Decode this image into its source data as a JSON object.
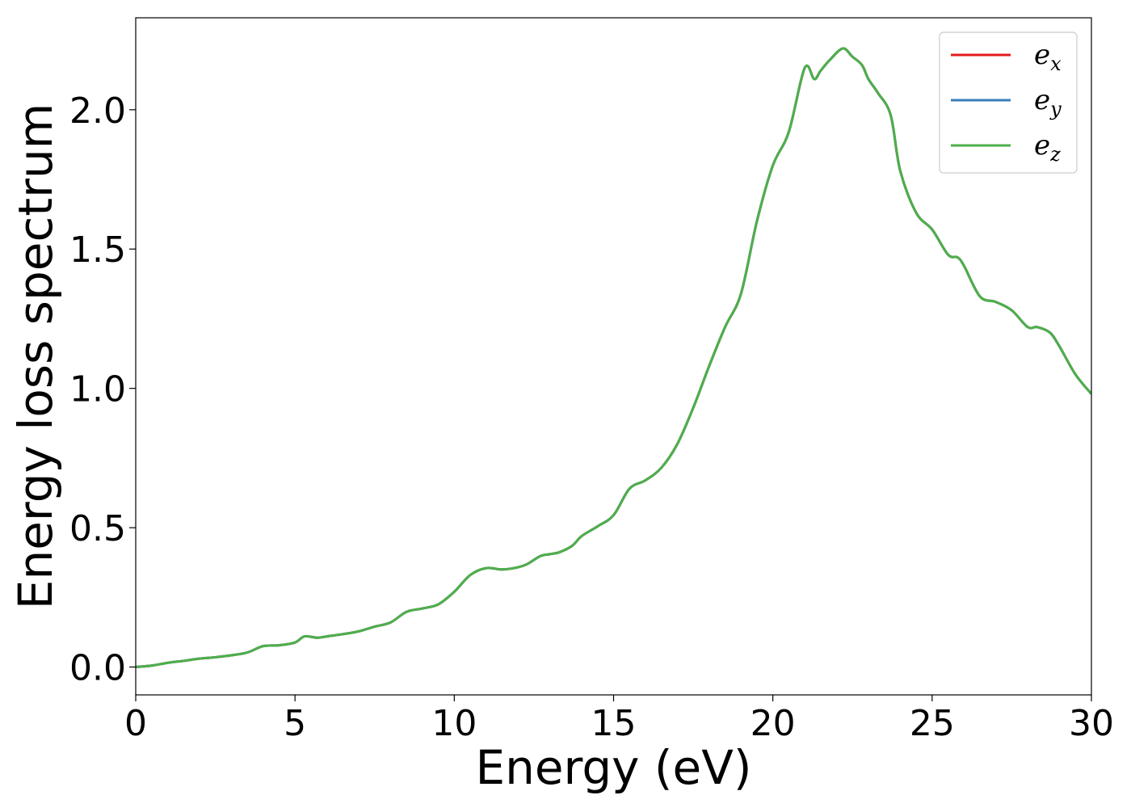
{
  "chart_data": {
    "type": "line",
    "title": "",
    "xlabel": "Energy (eV)",
    "ylabel": "Energy loss spectrum",
    "xlim": [
      0,
      30
    ],
    "ylim": [
      -0.1,
      2.33
    ],
    "x_ticks": [
      "0",
      "5",
      "10",
      "15",
      "20",
      "25",
      "30"
    ],
    "y_ticks": [
      "0.0",
      "0.5",
      "1.0",
      "1.5",
      "2.0"
    ],
    "grid": false,
    "legend_position": "top-right",
    "x": [
      0,
      0.5,
      1,
      1.5,
      2,
      2.5,
      3,
      3.5,
      4,
      4.5,
      5,
      5.3,
      5.7,
      6,
      6.5,
      7,
      7.5,
      8,
      8.5,
      9,
      9.5,
      10,
      10.5,
      11,
      11.5,
      12,
      12.3,
      12.7,
      13,
      13.3,
      13.7,
      14,
      14.5,
      15,
      15.5,
      16,
      16.5,
      17,
      17.5,
      18,
      18.5,
      19,
      19.5,
      20,
      20.5,
      21,
      21.3,
      21.5,
      21.8,
      22.2,
      22.5,
      22.8,
      23,
      23.3,
      23.7,
      24,
      24.5,
      25,
      25.5,
      25.8,
      26,
      26.5,
      27,
      27.5,
      28,
      28.3,
      28.7,
      29,
      29.5,
      30
    ],
    "series": [
      {
        "name": "e_x",
        "label_base": "e",
        "label_sub": "x",
        "color": "#e41a1c",
        "values": [
          0.0,
          0.005,
          0.015,
          0.022,
          0.03,
          0.035,
          0.042,
          0.052,
          0.075,
          0.078,
          0.088,
          0.11,
          0.105,
          0.11,
          0.118,
          0.128,
          0.145,
          0.16,
          0.198,
          0.21,
          0.225,
          0.27,
          0.33,
          0.355,
          0.35,
          0.358,
          0.37,
          0.398,
          0.405,
          0.412,
          0.435,
          0.47,
          0.505,
          0.545,
          0.64,
          0.67,
          0.715,
          0.8,
          0.93,
          1.08,
          1.22,
          1.34,
          1.6,
          1.8,
          1.92,
          2.15,
          2.11,
          2.14,
          2.18,
          2.22,
          2.19,
          2.16,
          2.11,
          2.06,
          1.98,
          1.78,
          1.63,
          1.57,
          1.48,
          1.47,
          1.44,
          1.33,
          1.31,
          1.28,
          1.22,
          1.22,
          1.2,
          1.15,
          1.05,
          0.98
        ]
      },
      {
        "name": "e_y",
        "label_base": "e",
        "label_sub": "y",
        "color": "#377eb8",
        "values": [
          0.0,
          0.005,
          0.015,
          0.022,
          0.03,
          0.035,
          0.042,
          0.052,
          0.075,
          0.078,
          0.088,
          0.11,
          0.105,
          0.11,
          0.118,
          0.128,
          0.145,
          0.16,
          0.198,
          0.21,
          0.225,
          0.27,
          0.33,
          0.355,
          0.35,
          0.358,
          0.37,
          0.398,
          0.405,
          0.412,
          0.435,
          0.47,
          0.505,
          0.545,
          0.64,
          0.67,
          0.715,
          0.8,
          0.93,
          1.08,
          1.22,
          1.34,
          1.6,
          1.8,
          1.92,
          2.15,
          2.11,
          2.14,
          2.18,
          2.22,
          2.19,
          2.16,
          2.11,
          2.06,
          1.98,
          1.78,
          1.63,
          1.57,
          1.48,
          1.47,
          1.44,
          1.33,
          1.31,
          1.28,
          1.22,
          1.22,
          1.2,
          1.15,
          1.05,
          0.98
        ]
      },
      {
        "name": "e_z",
        "label_base": "e",
        "label_sub": "z",
        "color": "#4daf4a",
        "values": [
          0.0,
          0.005,
          0.015,
          0.022,
          0.03,
          0.035,
          0.042,
          0.052,
          0.075,
          0.078,
          0.088,
          0.11,
          0.105,
          0.11,
          0.118,
          0.128,
          0.145,
          0.16,
          0.198,
          0.21,
          0.225,
          0.27,
          0.33,
          0.355,
          0.35,
          0.358,
          0.37,
          0.398,
          0.405,
          0.412,
          0.435,
          0.47,
          0.505,
          0.545,
          0.64,
          0.67,
          0.715,
          0.8,
          0.93,
          1.08,
          1.22,
          1.34,
          1.6,
          1.8,
          1.92,
          2.15,
          2.11,
          2.14,
          2.18,
          2.22,
          2.19,
          2.16,
          2.11,
          2.06,
          1.98,
          1.78,
          1.63,
          1.57,
          1.48,
          1.47,
          1.44,
          1.33,
          1.31,
          1.28,
          1.22,
          1.22,
          1.2,
          1.15,
          1.05,
          0.98
        ]
      }
    ]
  }
}
